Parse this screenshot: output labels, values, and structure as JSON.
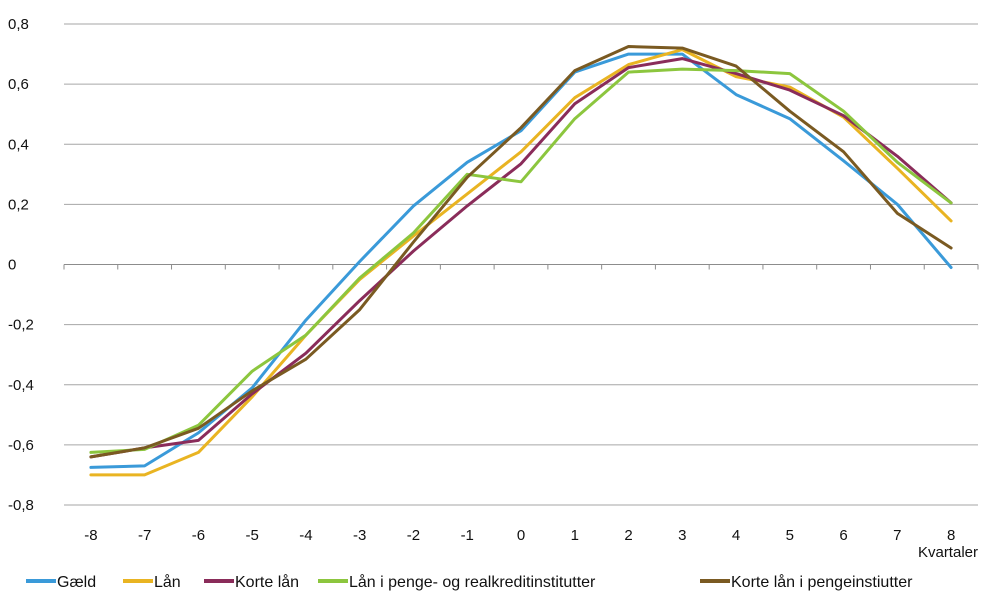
{
  "chart_data": {
    "type": "line",
    "x": [
      -8,
      -7,
      -6,
      -5,
      -4,
      -3,
      -2,
      -1,
      0,
      1,
      2,
      3,
      4,
      5,
      6,
      7,
      8
    ],
    "xlabel": "Kvartaler",
    "ylabel": "",
    "title": "",
    "ylim": [
      -0.8,
      0.8
    ],
    "ytick_values": [
      -0.8,
      -0.6,
      -0.4,
      -0.2,
      0,
      0.2,
      0.4,
      0.6,
      0.8
    ],
    "ytick_labels": [
      "-0,8",
      "-0,6",
      "-0,4",
      "-0,2",
      "0",
      "0,2",
      "0,4",
      "0,6",
      "0,8"
    ],
    "xtick_labels": [
      "-8",
      "-7",
      "-6",
      "-5",
      "-4",
      "-3",
      "-2",
      "-1",
      "0",
      "1",
      "2",
      "3",
      "4",
      "5",
      "6",
      "7",
      "8"
    ],
    "grid": "horizontal",
    "legend_position": "bottom",
    "series": [
      {
        "name": "Gæld",
        "color": "#3a9ad9",
        "values": [
          -0.675,
          -0.67,
          -0.56,
          -0.41,
          -0.185,
          0.01,
          0.195,
          0.34,
          0.445,
          0.64,
          0.7,
          0.7,
          0.565,
          0.485,
          0.345,
          0.2,
          -0.01
        ]
      },
      {
        "name": "Lån",
        "color": "#e9b422",
        "values": [
          -0.7,
          -0.7,
          -0.625,
          -0.44,
          -0.235,
          -0.05,
          0.095,
          0.235,
          0.375,
          0.555,
          0.665,
          0.715,
          0.625,
          0.59,
          0.49,
          0.32,
          0.145
        ]
      },
      {
        "name": "Korte lån",
        "color": "#8a2c5a",
        "values": [
          -0.64,
          -0.61,
          -0.585,
          -0.43,
          -0.295,
          -0.12,
          0.045,
          0.195,
          0.335,
          0.535,
          0.655,
          0.685,
          0.635,
          0.58,
          0.495,
          0.36,
          0.205
        ]
      },
      {
        "name": "Lån i penge- og realkreditinstitutter",
        "color": "#8cc63e",
        "values": [
          -0.625,
          -0.615,
          -0.535,
          -0.355,
          -0.235,
          -0.045,
          0.105,
          0.3,
          0.275,
          0.485,
          0.64,
          0.65,
          0.645,
          0.635,
          0.51,
          0.34,
          0.205
        ]
      },
      {
        "name": "Korte lån i pengeinstiutter",
        "color": "#7a5a22",
        "values": [
          -0.64,
          -0.61,
          -0.545,
          -0.42,
          -0.315,
          -0.15,
          0.075,
          0.29,
          0.455,
          0.645,
          0.725,
          0.72,
          0.66,
          0.51,
          0.375,
          0.17,
          0.055
        ]
      }
    ]
  }
}
